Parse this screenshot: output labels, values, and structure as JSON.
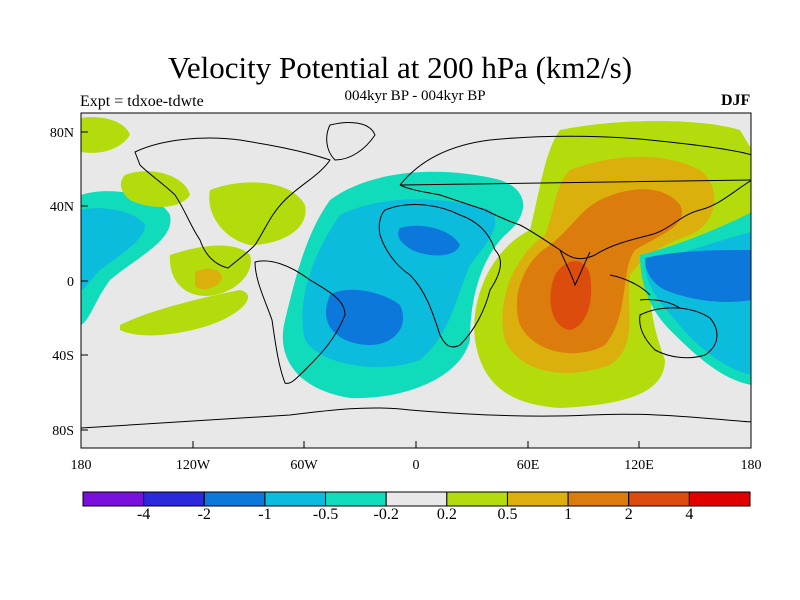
{
  "figure": {
    "title": "Velocity Potential at 200 hPa (km2/s)",
    "subtitle": "004kyr BP - 004kyr BP",
    "experiment": "Expt = tdxoe-tdwte",
    "season": "DJF"
  },
  "axes": {
    "lon_ticks": [
      "180",
      "120W",
      "60W",
      "0",
      "60E",
      "120E",
      "180"
    ],
    "lat_ticks": [
      "80N",
      "40N",
      "0",
      "40S",
      "80S"
    ]
  },
  "colorbar": {
    "labels": [
      "-4",
      "-2",
      "-1",
      "-0.5",
      "-0.2",
      "0.2",
      "0.5",
      "1",
      "2",
      "4"
    ],
    "colors": [
      "#7a10dc",
      "#2a2adc",
      "#0c78dc",
      "#0cbcdc",
      "#10dcbc",
      "#e8e8e8",
      "#b4dc0c",
      "#dcb00c",
      "#dc7c0c",
      "#dc4c0c",
      "#e00000"
    ]
  },
  "chart_data": {
    "type": "map",
    "projection": "cylindrical equidistant",
    "variable": "Velocity Potential at 200 hPa",
    "units": "km2/s",
    "lon_range": [
      -180,
      180
    ],
    "lat_range": [
      -90,
      90
    ],
    "levels": [
      -4,
      -2,
      -1,
      -0.5,
      -0.2,
      0.2,
      0.5,
      1,
      2,
      4
    ],
    "features": [
      {
        "name": "positive center Indian Ocean",
        "lon": 80,
        "lat": -10,
        "value": 2.5
      },
      {
        "name": "positive East Asia",
        "lon": 120,
        "lat": 30,
        "value": 1.2
      },
      {
        "name": "negative South America / Atlantic",
        "lon": -40,
        "lat": -15,
        "value": -1.0
      },
      {
        "name": "negative West Pacific",
        "lon": 160,
        "lat": 5,
        "value": -1.0
      },
      {
        "name": "negative central Pacific",
        "lon": -150,
        "lat": 15,
        "value": -0.6
      },
      {
        "name": "positive eastern Pacific",
        "lon": -110,
        "lat": 0,
        "value": 0.6
      },
      {
        "name": "positive North America",
        "lon": -90,
        "lat": 40,
        "value": 0.3
      }
    ]
  }
}
